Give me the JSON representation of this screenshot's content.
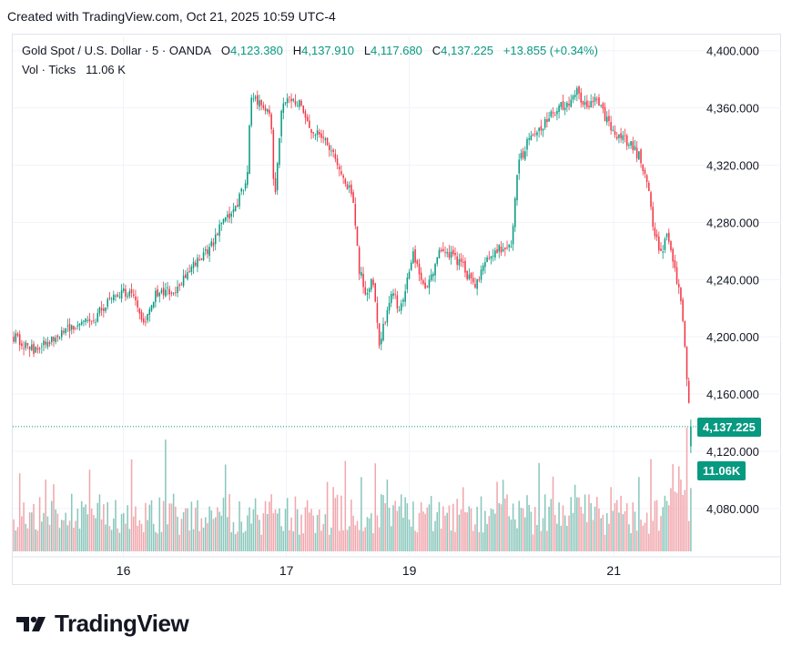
{
  "header": {
    "created_text": "Created with TradingView.com, Oct 21, 2025 10:59 UTC-4"
  },
  "legend": {
    "symbol": "Gold Spot / U.S. Dollar · 5 · OANDA",
    "o_label": "O",
    "o_value": "4,123.380",
    "h_label": "H",
    "h_value": "4,137.910",
    "l_label": "L",
    "l_value": "4,117.680",
    "c_label": "C",
    "c_value": "4,137.225",
    "change": "+13.855 (+0.34%)",
    "vol_label": "Vol · Ticks",
    "vol_value": "11.06 K"
  },
  "badges": {
    "price": "4,137.225",
    "volume": "11.06K"
  },
  "logo": {
    "word": "TradingView"
  },
  "colors": {
    "up": "#089981",
    "down": "#f23645",
    "text": "#131722",
    "grid": "#f0f3fa",
    "vol_up": "#8ac7bc",
    "vol_down": "#f0a7ad"
  },
  "chart_data": {
    "type": "line",
    "series_type": "candlestick",
    "ylim": [
      4050,
      4410
    ],
    "y_ticks": [
      "4,400.000",
      "4,360.000",
      "4,320.000",
      "4,280.000",
      "4,240.000",
      "4,200.000",
      "4,160.000",
      "4,120.000",
      "4,080.000"
    ],
    "y_tick_values": [
      4400,
      4360,
      4320,
      4280,
      4240,
      4200,
      4160,
      4120,
      4080
    ],
    "x_ticks": [
      "16",
      "17",
      "19",
      "21"
    ],
    "x_tick_positions": [
      0.163,
      0.403,
      0.584,
      0.885
    ],
    "last_price": 4137.225,
    "close_path": [
      [
        0.0,
        4200
      ],
      [
        0.03,
        4190
      ],
      [
        0.06,
        4200
      ],
      [
        0.09,
        4208
      ],
      [
        0.12,
        4213
      ],
      [
        0.15,
        4232
      ],
      [
        0.18,
        4228
      ],
      [
        0.19,
        4206
      ],
      [
        0.21,
        4230
      ],
      [
        0.24,
        4233
      ],
      [
        0.27,
        4252
      ],
      [
        0.29,
        4262
      ],
      [
        0.31,
        4281
      ],
      [
        0.33,
        4292
      ],
      [
        0.345,
        4315
      ],
      [
        0.35,
        4368
      ],
      [
        0.37,
        4362
      ],
      [
        0.38,
        4350
      ],
      [
        0.385,
        4290
      ],
      [
        0.395,
        4358
      ],
      [
        0.41,
        4368
      ],
      [
        0.425,
        4362
      ],
      [
        0.44,
        4345
      ],
      [
        0.46,
        4338
      ],
      [
        0.48,
        4318
      ],
      [
        0.5,
        4300
      ],
      [
        0.51,
        4248
      ],
      [
        0.52,
        4230
      ],
      [
        0.53,
        4242
      ],
      [
        0.54,
        4195
      ],
      [
        0.56,
        4232
      ],
      [
        0.57,
        4215
      ],
      [
        0.59,
        4258
      ],
      [
        0.61,
        4232
      ],
      [
        0.63,
        4262
      ],
      [
        0.66,
        4252
      ],
      [
        0.68,
        4234
      ],
      [
        0.7,
        4256
      ],
      [
        0.72,
        4262
      ],
      [
        0.735,
        4262
      ],
      [
        0.745,
        4320
      ],
      [
        0.76,
        4338
      ],
      [
        0.78,
        4348
      ],
      [
        0.8,
        4358
      ],
      [
        0.82,
        4365
      ],
      [
        0.83,
        4373
      ],
      [
        0.845,
        4360
      ],
      [
        0.86,
        4370
      ],
      [
        0.875,
        4352
      ],
      [
        0.89,
        4342
      ],
      [
        0.91,
        4335
      ],
      [
        0.925,
        4325
      ],
      [
        0.935,
        4310
      ],
      [
        0.945,
        4275
      ],
      [
        0.955,
        4258
      ],
      [
        0.965,
        4270
      ],
      [
        0.975,
        4248
      ],
      [
        0.985,
        4228
      ],
      [
        0.99,
        4205
      ],
      [
        0.995,
        4165
      ],
      [
        1.0,
        4137
      ]
    ],
    "volume_ylim": [
      0,
      15
    ],
    "last_volume": 11.06
  }
}
